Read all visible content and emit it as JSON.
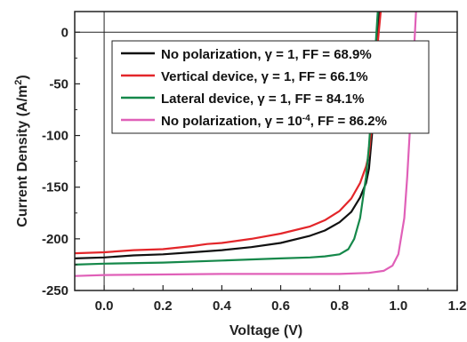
{
  "chart_data": {
    "type": "line",
    "xlabel": "Voltage (V)",
    "ylabel": "Current Density (A/m²)",
    "xlim": [
      -0.1,
      1.2
    ],
    "ylim": [
      -250,
      20
    ],
    "xticks": [
      0.0,
      0.2,
      0.4,
      0.6,
      0.8,
      1.0,
      1.2
    ],
    "xtick_labels": [
      "0.0",
      "0.2",
      "0.4",
      "0.6",
      "0.8",
      "1.0",
      "1.2"
    ],
    "yticks": [
      0,
      -50,
      -100,
      -150,
      -200,
      -250
    ],
    "ytick_labels": [
      "0",
      "-50",
      "-100",
      "-150",
      "-200",
      "-250"
    ],
    "reference_lines": {
      "x": 0,
      "y": 0
    },
    "legend_position": "top-right",
    "series": [
      {
        "name": "No polarization, γ = 1, FF = 68.9%",
        "color": "#111111",
        "x": [
          -0.1,
          0.0,
          0.1,
          0.2,
          0.3,
          0.4,
          0.5,
          0.6,
          0.7,
          0.75,
          0.8,
          0.84,
          0.87,
          0.89,
          0.9,
          0.91,
          0.92,
          0.93,
          0.935
        ],
        "y": [
          -219,
          -218,
          -216,
          -215,
          -213,
          -211,
          -208,
          -204,
          -197,
          -192,
          -184,
          -174,
          -160,
          -146,
          -132,
          -100,
          -55,
          -5,
          20
        ]
      },
      {
        "name": "Vertical device, γ = 1, FF = 66.1%",
        "color": "#e3262a",
        "x": [
          -0.1,
          0.0,
          0.1,
          0.2,
          0.3,
          0.35,
          0.4,
          0.5,
          0.6,
          0.7,
          0.75,
          0.8,
          0.84,
          0.87,
          0.89,
          0.9,
          0.91,
          0.92,
          0.93,
          0.94
        ],
        "y": [
          -214,
          -213,
          -211,
          -210,
          -207,
          -205,
          -204,
          -200,
          -195,
          -188,
          -182,
          -173,
          -161,
          -146,
          -130,
          -118,
          -90,
          -55,
          -10,
          20
        ]
      },
      {
        "name": "Lateral device, γ = 1, FF = 84.1%",
        "color": "#15884a",
        "x": [
          -0.1,
          0.0,
          0.2,
          0.4,
          0.6,
          0.7,
          0.75,
          0.8,
          0.83,
          0.85,
          0.87,
          0.89,
          0.9,
          0.91,
          0.92,
          0.93
        ],
        "y": [
          -225,
          -224,
          -223,
          -221,
          -219,
          -218,
          -217,
          -215,
          -210,
          -200,
          -180,
          -140,
          -110,
          -70,
          -25,
          20
        ]
      },
      {
        "name": "No polarization, γ = 10⁻⁴, FF = 86.2%",
        "color": "#e060b8",
        "x": [
          -0.1,
          0.0,
          0.4,
          0.8,
          0.9,
          0.95,
          0.98,
          1.0,
          1.02,
          1.03,
          1.04,
          1.05,
          1.06
        ],
        "y": [
          -236,
          -235,
          -234,
          -234,
          -233,
          -231,
          -226,
          -215,
          -180,
          -140,
          -90,
          -35,
          20
        ]
      }
    ]
  },
  "legend": [
    {
      "prefix": "No polarization, γ = 1, FF = 68.9%",
      "sup": "",
      "suffix": ""
    },
    {
      "prefix": "Vertical device, γ = 1, FF = 66.1%",
      "sup": "",
      "suffix": ""
    },
    {
      "prefix": "Lateral device, γ = 1, FF = 84.1%",
      "sup": "",
      "suffix": ""
    },
    {
      "prefix": "No polarization, γ = 10",
      "sup": "-4",
      "suffix": ", FF = 86.2%"
    }
  ],
  "axes": {
    "xlabel": "Voltage (V)",
    "ylabel_main": "Current Density (A/m",
    "ylabel_sup": "2",
    "ylabel_end": ")"
  }
}
